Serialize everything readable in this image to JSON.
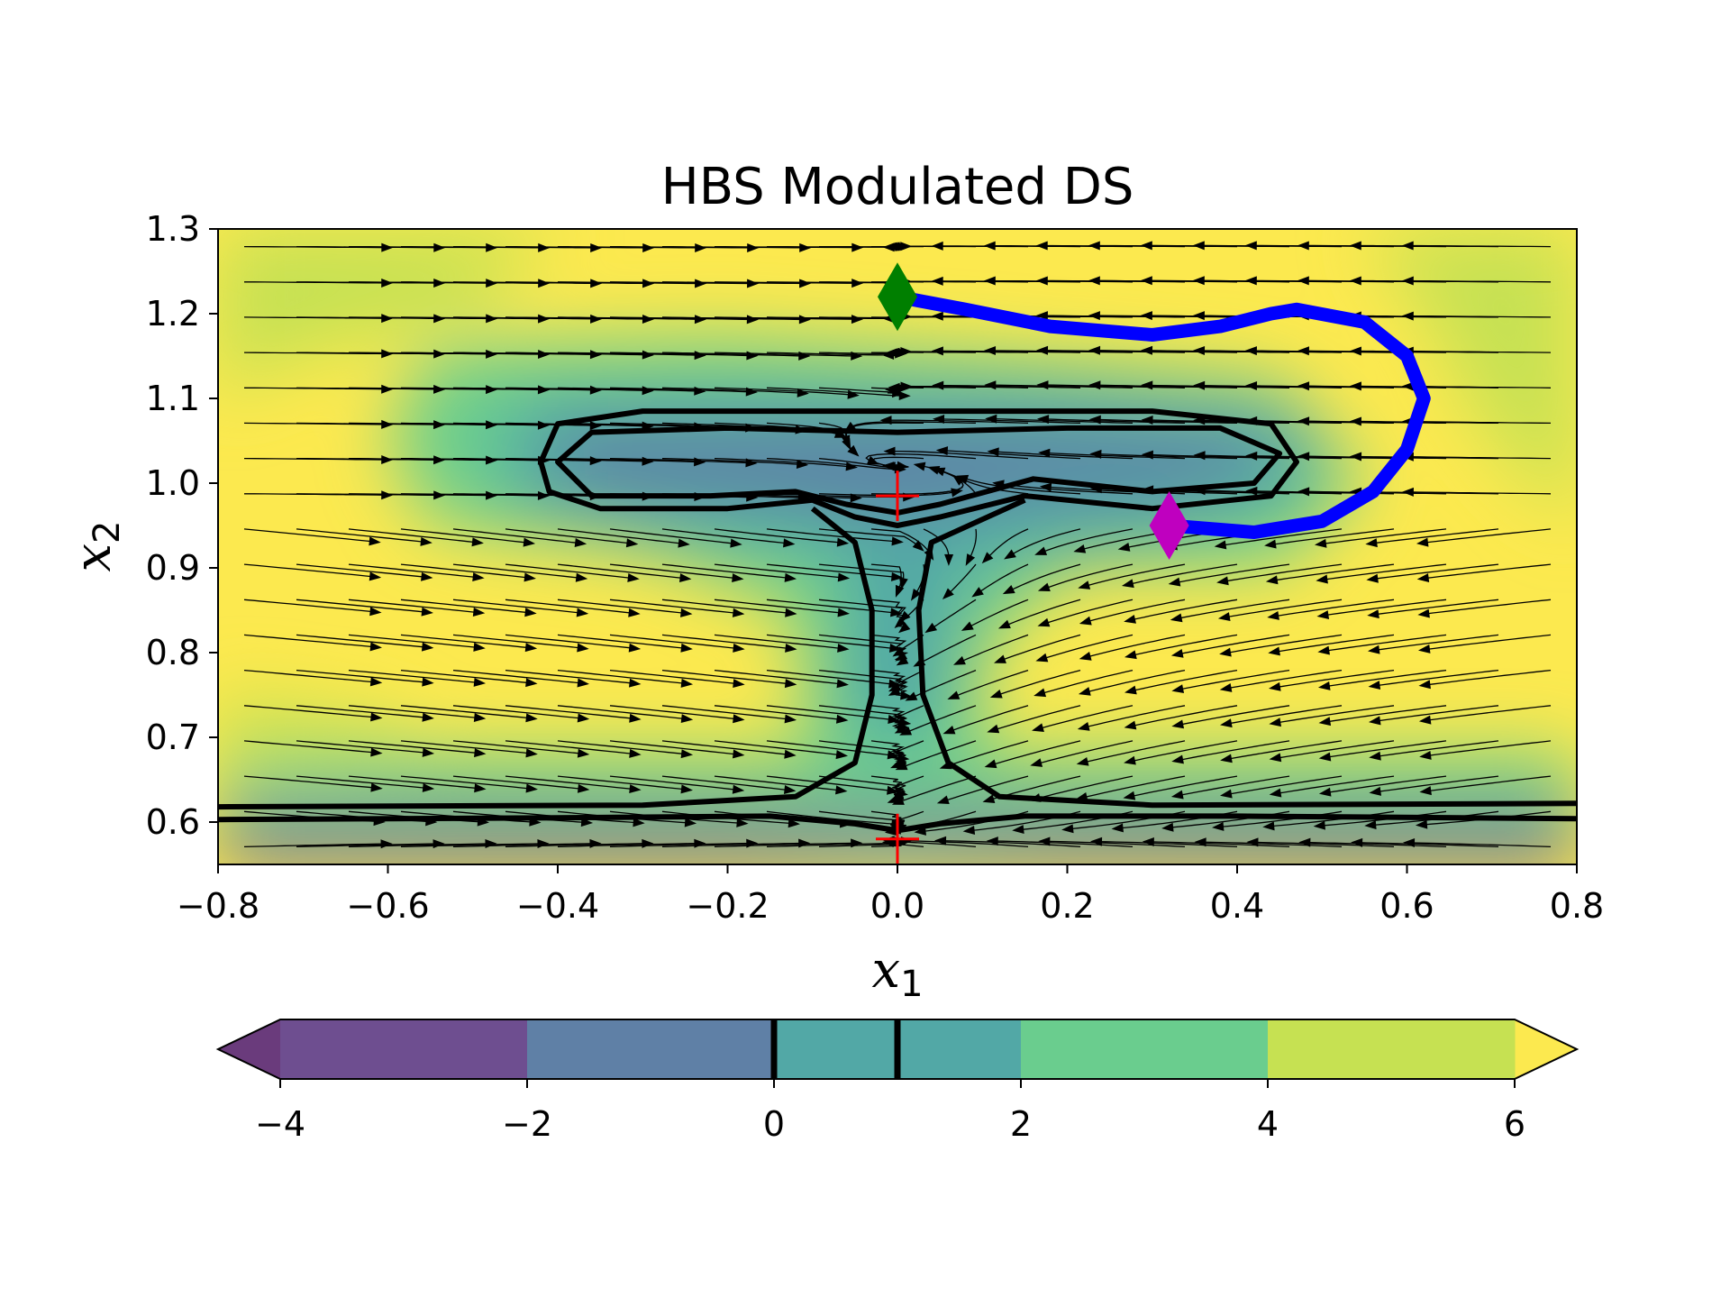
{
  "chart_data": {
    "type": "contour",
    "title": "HBS Modulated DS",
    "xlabel": {
      "base": "x",
      "sub": "1"
    },
    "ylabel": {
      "base": "x",
      "sub": "2"
    },
    "xlim": [
      -0.8,
      0.8
    ],
    "ylim": [
      0.55,
      1.3
    ],
    "xticks": [
      -0.8,
      -0.6,
      -0.4,
      -0.2,
      0.0,
      0.2,
      0.4,
      0.6,
      0.8
    ],
    "xtick_labels": [
      "−0.8",
      "−0.6",
      "−0.4",
      "−0.2",
      "0.0",
      "0.2",
      "0.4",
      "0.6",
      "0.8"
    ],
    "yticks": [
      0.6,
      0.7,
      0.8,
      0.9,
      1.0,
      1.1,
      1.2,
      1.3
    ],
    "ytick_labels": [
      "0.6",
      "0.7",
      "0.8",
      "0.9",
      "1.0",
      "1.1",
      "1.2",
      "1.3"
    ],
    "grid": false,
    "colormap": "viridis",
    "colorbar": {
      "orientation": "horizontal",
      "placement": "bottom",
      "ticks": [
        -4,
        -2,
        0,
        2,
        4,
        6
      ],
      "tick_labels": [
        "−4",
        "−2",
        "0",
        "2",
        "4",
        "6"
      ],
      "range": [
        -4,
        6
      ],
      "extend": "both",
      "highlighted_levels": [
        0,
        1
      ],
      "bands": [
        {
          "from": -4,
          "to": -2,
          "color": "#6e4e90"
        },
        {
          "from": -2,
          "to": 0,
          "color": "#5f80a6"
        },
        {
          "from": 0,
          "to": 2,
          "color": "#52a8a6",
          "split_at": 1
        },
        {
          "from": 2,
          "to": 4,
          "color": "#6acd8e"
        },
        {
          "from": 4,
          "to": 6,
          "color": "#c6e152"
        }
      ],
      "under_color": "#6a3b7c",
      "over_color": "#fce94f"
    },
    "background_color": "#fce94f",
    "markers": [
      {
        "name": "start",
        "shape": "diamond",
        "color": "#007f00",
        "x": 0.0,
        "y": 1.22
      },
      {
        "name": "end",
        "shape": "diamond",
        "color": "#bf00bf",
        "x": 0.32,
        "y": 0.95
      },
      {
        "name": "attractor-upper",
        "shape": "plus",
        "color": "#ff0000",
        "x": 0.0,
        "y": 0.985
      },
      {
        "name": "attractor-lower",
        "shape": "plus",
        "color": "#ff0000",
        "x": 0.0,
        "y": 0.58
      }
    ],
    "trajectory": {
      "color": "#0000ff",
      "points": [
        [
          0.0,
          1.22
        ],
        [
          0.08,
          1.205
        ],
        [
          0.18,
          1.185
        ],
        [
          0.3,
          1.175
        ],
        [
          0.38,
          1.185
        ],
        [
          0.44,
          1.2
        ],
        [
          0.47,
          1.205
        ],
        [
          0.55,
          1.19
        ],
        [
          0.6,
          1.15
        ],
        [
          0.62,
          1.1
        ],
        [
          0.6,
          1.04
        ],
        [
          0.56,
          0.99
        ],
        [
          0.5,
          0.955
        ],
        [
          0.42,
          0.942
        ],
        [
          0.32,
          0.95
        ]
      ]
    },
    "zero_level_contours": [
      {
        "name": "top-band",
        "closed": true,
        "points": [
          [
            -0.42,
            1.025
          ],
          [
            -0.4,
            1.07
          ],
          [
            -0.3,
            1.085
          ],
          [
            -0.1,
            1.085
          ],
          [
            0.1,
            1.085
          ],
          [
            0.3,
            1.085
          ],
          [
            0.44,
            1.07
          ],
          [
            0.47,
            1.025
          ],
          [
            0.44,
            0.985
          ],
          [
            0.3,
            0.97
          ],
          [
            0.15,
            0.985
          ],
          [
            0.05,
            0.96
          ],
          [
            0.0,
            0.95
          ],
          [
            -0.05,
            0.96
          ],
          [
            -0.1,
            0.98
          ],
          [
            -0.2,
            0.97
          ],
          [
            -0.35,
            0.97
          ],
          [
            -0.41,
            0.99
          ]
        ]
      },
      {
        "name": "top-band-inner",
        "closed": true,
        "points": [
          [
            -0.4,
            1.025
          ],
          [
            -0.36,
            1.06
          ],
          [
            -0.2,
            1.065
          ],
          [
            0.0,
            1.06
          ],
          [
            0.2,
            1.065
          ],
          [
            0.38,
            1.065
          ],
          [
            0.45,
            1.035
          ],
          [
            0.42,
            1.0
          ],
          [
            0.3,
            0.99
          ],
          [
            0.16,
            1.005
          ],
          [
            0.05,
            0.975
          ],
          [
            0.0,
            0.965
          ],
          [
            -0.06,
            0.975
          ],
          [
            -0.12,
            0.99
          ],
          [
            -0.22,
            0.985
          ],
          [
            -0.36,
            0.985
          ]
        ]
      },
      {
        "name": "stem-left",
        "closed": false,
        "points": [
          [
            -0.1,
            0.97
          ],
          [
            -0.05,
            0.93
          ],
          [
            -0.03,
            0.85
          ],
          [
            -0.03,
            0.75
          ],
          [
            -0.05,
            0.67
          ],
          [
            -0.12,
            0.63
          ],
          [
            -0.3,
            0.62
          ],
          [
            -0.8,
            0.618
          ]
        ]
      },
      {
        "name": "stem-right",
        "closed": false,
        "points": [
          [
            0.15,
            0.98
          ],
          [
            0.04,
            0.93
          ],
          [
            0.025,
            0.85
          ],
          [
            0.03,
            0.75
          ],
          [
            0.06,
            0.67
          ],
          [
            0.12,
            0.63
          ],
          [
            0.3,
            0.62
          ],
          [
            0.8,
            0.622
          ]
        ]
      },
      {
        "name": "bottom-line",
        "closed": false,
        "points": [
          [
            -0.8,
            0.603
          ],
          [
            -0.4,
            0.605
          ],
          [
            -0.15,
            0.607
          ],
          [
            -0.05,
            0.598
          ],
          [
            0.0,
            0.59
          ],
          [
            0.05,
            0.598
          ],
          [
            0.15,
            0.607
          ],
          [
            0.4,
            0.607
          ],
          [
            0.8,
            0.604
          ]
        ]
      }
    ]
  }
}
